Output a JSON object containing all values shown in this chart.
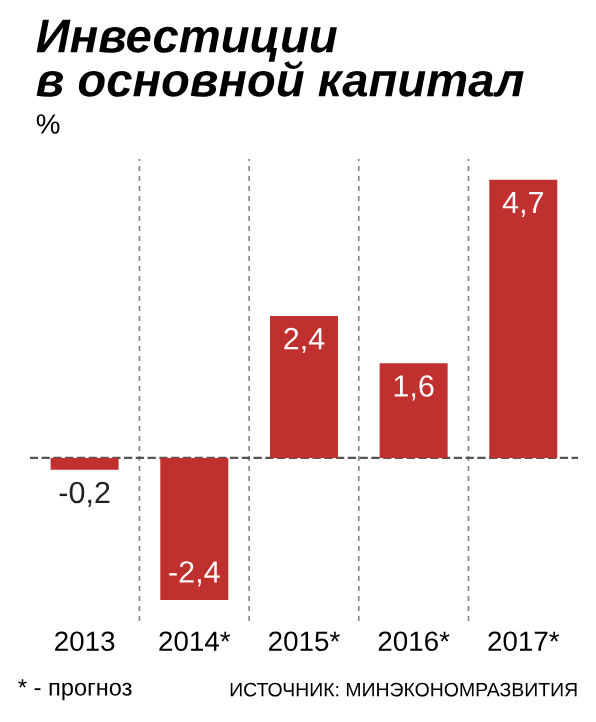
{
  "chart_data": {
    "type": "bar",
    "title": "Инвестиции\nв основной капитал",
    "ylabel": "%",
    "categories": [
      "2013",
      "2014*",
      "2015*",
      "2016*",
      "2017*"
    ],
    "values": [
      -0.2,
      -2.4,
      2.4,
      1.6,
      4.7
    ],
    "value_labels": [
      "-0,2",
      "-2,4",
      "2,4",
      "1,6",
      "4,7"
    ],
    "color": "#c0302e",
    "grid": "x",
    "ref_lines": [
      {
        "axis": "y",
        "value": 0,
        "color": "#555555",
        "line_style": "dashed"
      }
    ],
    "annotations": [
      "* - прогноз",
      "ИСТОЧНИК: МИНЭКОНОМРАЗВИТИЯ"
    ]
  }
}
